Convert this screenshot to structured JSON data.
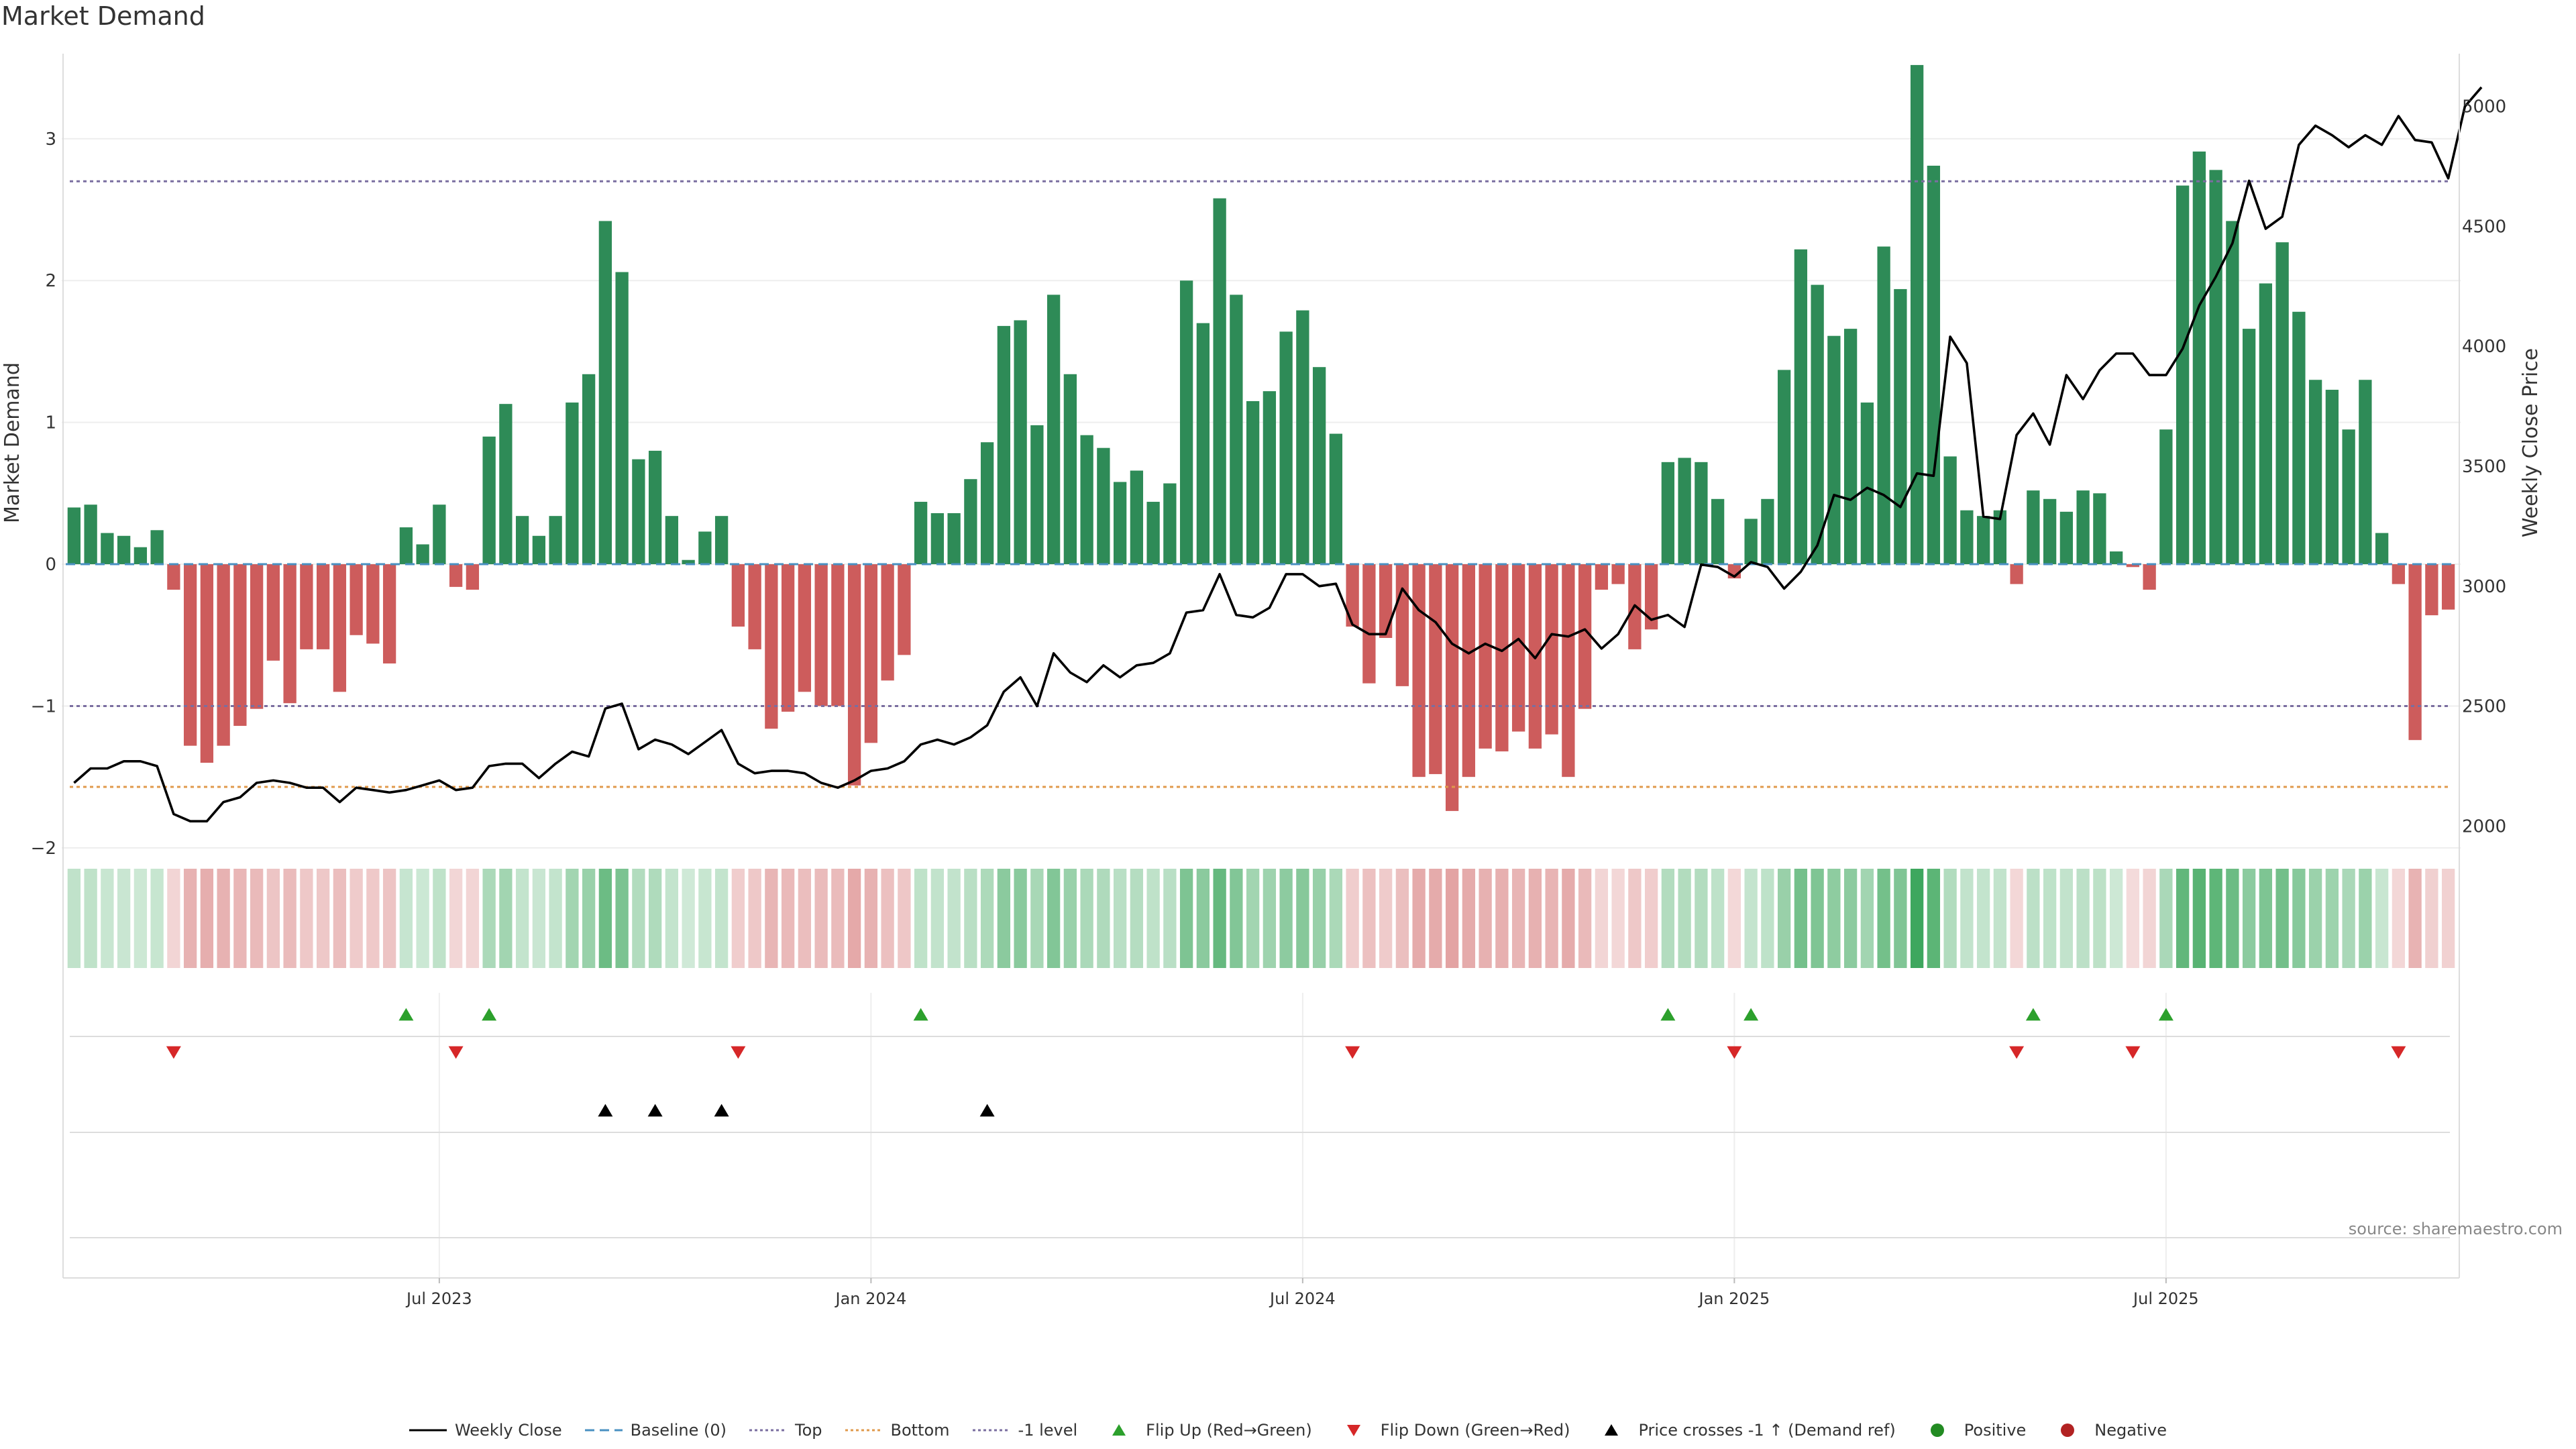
{
  "chart_data": {
    "type": "bar+line",
    "title": "Market Demand",
    "source": "source: sharemaestro.com",
    "ylabel_left": "Market Demand",
    "ylabel_right": "Weekly Close Price",
    "y_left_range": [
      -2.1,
      3.6
    ],
    "y_right_range": [
      1850,
      5220
    ],
    "y_left_ticks": [
      -2,
      -1,
      0,
      1,
      2,
      3
    ],
    "y_left_tick_labels": [
      "−2",
      "−1",
      "0",
      "1",
      "2",
      "3"
    ],
    "y_right_ticks": [
      2000,
      2500,
      3000,
      3500,
      4000,
      4500,
      5000
    ],
    "y_right_tick_labels": [
      "2000",
      "2500",
      "3000",
      "3500",
      "4000",
      "4500",
      "5000"
    ],
    "x_ticks": [
      {
        "label": "Jul 2023",
        "index": 22
      },
      {
        "label": "Jan 2024",
        "index": 48
      },
      {
        "label": "Jul 2024",
        "index": 74
      },
      {
        "label": "Jan 2025",
        "index": 100
      },
      {
        "label": "Jul 2025",
        "index": 126
      }
    ],
    "reference_lines": [
      {
        "name": "Top",
        "value": 2.7,
        "color": "#7a6ea0"
      },
      {
        "name": "-1 level",
        "value": -1,
        "color": "#7a6ea0"
      },
      {
        "name": "Bottom",
        "value": -1.57,
        "color": "#e09a4c"
      }
    ],
    "colors": {
      "positive_bar": "#2e8b57",
      "negative_bar": "#cd5c5c",
      "close_line": "#000000",
      "baseline": "#4a90c2",
      "flip_up": "#2ca02c",
      "flip_down": "#d62728",
      "price_cross": "#000000",
      "positive_dot": "#228b22",
      "negative_dot": "#b22222"
    },
    "demand": [
      0.4,
      0.42,
      0.22,
      0.2,
      0.12,
      0.24,
      -0.18,
      -1.28,
      -1.4,
      -1.28,
      -1.14,
      -1.02,
      -0.68,
      -0.98,
      -0.6,
      -0.6,
      -0.9,
      -0.5,
      -0.56,
      -0.7,
      0.26,
      0.14,
      0.42,
      -0.16,
      -0.18,
      0.9,
      1.13,
      0.34,
      0.2,
      0.34,
      1.14,
      1.34,
      2.42,
      2.06,
      0.74,
      0.8,
      0.34,
      0.03,
      0.23,
      0.34,
      -0.44,
      -0.6,
      -1.16,
      -1.04,
      -0.9,
      -1.0,
      -1.0,
      -1.56,
      -1.26,
      -0.82,
      -0.64,
      0.44,
      0.36,
      0.36,
      0.6,
      0.86,
      1.68,
      1.72,
      0.98,
      1.9,
      1.34,
      0.91,
      0.82,
      0.58,
      0.66,
      0.44,
      0.57,
      2.0,
      1.7,
      2.58,
      1.9,
      1.15,
      1.22,
      1.64,
      1.79,
      1.39,
      0.92,
      -0.44,
      -0.84,
      -0.52,
      -0.86,
      -1.5,
      -1.48,
      -1.74,
      -1.5,
      -1.3,
      -1.32,
      -1.18,
      -1.3,
      -1.2,
      -1.5,
      -1.02,
      -0.18,
      -0.14,
      -0.6,
      -0.46,
      0.72,
      0.75,
      0.72,
      0.46,
      -0.1,
      0.32,
      0.46,
      1.37,
      2.22,
      1.97,
      1.61,
      1.66,
      1.14,
      2.24,
      1.94,
      3.52,
      2.81,
      0.76,
      0.38,
      0.34,
      0.38,
      -0.14,
      0.52,
      0.46,
      0.37,
      0.52,
      0.5,
      0.09,
      -0.02,
      -0.18,
      0.95,
      2.67,
      2.91,
      2.78,
      2.42,
      1.66,
      1.98,
      2.27,
      1.78,
      1.3,
      1.23,
      0.95,
      1.3,
      0.22,
      -0.14,
      -1.24,
      -0.36,
      -0.32
    ],
    "weekly_close": [
      2180,
      2240,
      2240,
      2270,
      2270,
      2250,
      2050,
      2020,
      2020,
      2100,
      2120,
      2180,
      2190,
      2180,
      2160,
      2160,
      2100,
      2160,
      2150,
      2140,
      2150,
      2170,
      2190,
      2150,
      2160,
      2250,
      2260,
      2260,
      2200,
      2260,
      2310,
      2290,
      2490,
      2510,
      2320,
      2360,
      2340,
      2300,
      2350,
      2400,
      2260,
      2220,
      2230,
      2230,
      2220,
      2180,
      2160,
      2190,
      2230,
      2240,
      2270,
      2340,
      2360,
      2340,
      2370,
      2420,
      2560,
      2620,
      2500,
      2720,
      2640,
      2600,
      2670,
      2620,
      2670,
      2680,
      2720,
      2890,
      2900,
      3050,
      2880,
      2870,
      2910,
      3050,
      3050,
      3000,
      3010,
      2840,
      2800,
      2800,
      2990,
      2900,
      2850,
      2760,
      2720,
      2760,
      2730,
      2780,
      2700,
      2800,
      2790,
      2820,
      2740,
      2800,
      2920,
      2860,
      2880,
      2830,
      3090,
      3080,
      3040,
      3100,
      3080,
      2990,
      3060,
      3170,
      3380,
      3360,
      3410,
      3380,
      3330,
      3470,
      3460,
      4040,
      3930,
      3290,
      3280,
      3630,
      3720,
      3590,
      3880,
      3780,
      3900,
      3970,
      3970,
      3880,
      3880,
      3990,
      4170,
      4290,
      4430,
      4690,
      4490,
      4540,
      4840,
      4920,
      4880,
      4830,
      4880,
      4840,
      4960,
      4860,
      4850,
      4700,
      5000,
      5080
    ],
    "flip_up_indices": [
      20,
      25,
      51,
      96,
      101,
      118,
      126
    ],
    "flip_down_indices": [
      6,
      23,
      40,
      77,
      100,
      117,
      124,
      140
    ],
    "price_cross_indices": [
      32,
      35,
      39,
      55
    ],
    "legend": [
      {
        "label": "Weekly Close",
        "symbol": "line"
      },
      {
        "label": "Baseline (0)",
        "symbol": "dash-blue"
      },
      {
        "label": "Top",
        "symbol": "dot-purple"
      },
      {
        "label": "Bottom",
        "symbol": "dot-orange"
      },
      {
        "label": "-1 level",
        "symbol": "dot-purple"
      },
      {
        "label": "Flip Up (Red→Green)",
        "symbol": "tri-up-green"
      },
      {
        "label": "Flip Down (Green→Red)",
        "symbol": "tri-down-red"
      },
      {
        "label": "Price crosses -1 ↑ (Demand ref)",
        "symbol": "tri-up-black"
      },
      {
        "label": "Positive",
        "symbol": "dot-green"
      },
      {
        "label": "Negative",
        "symbol": "dot-red"
      }
    ]
  }
}
